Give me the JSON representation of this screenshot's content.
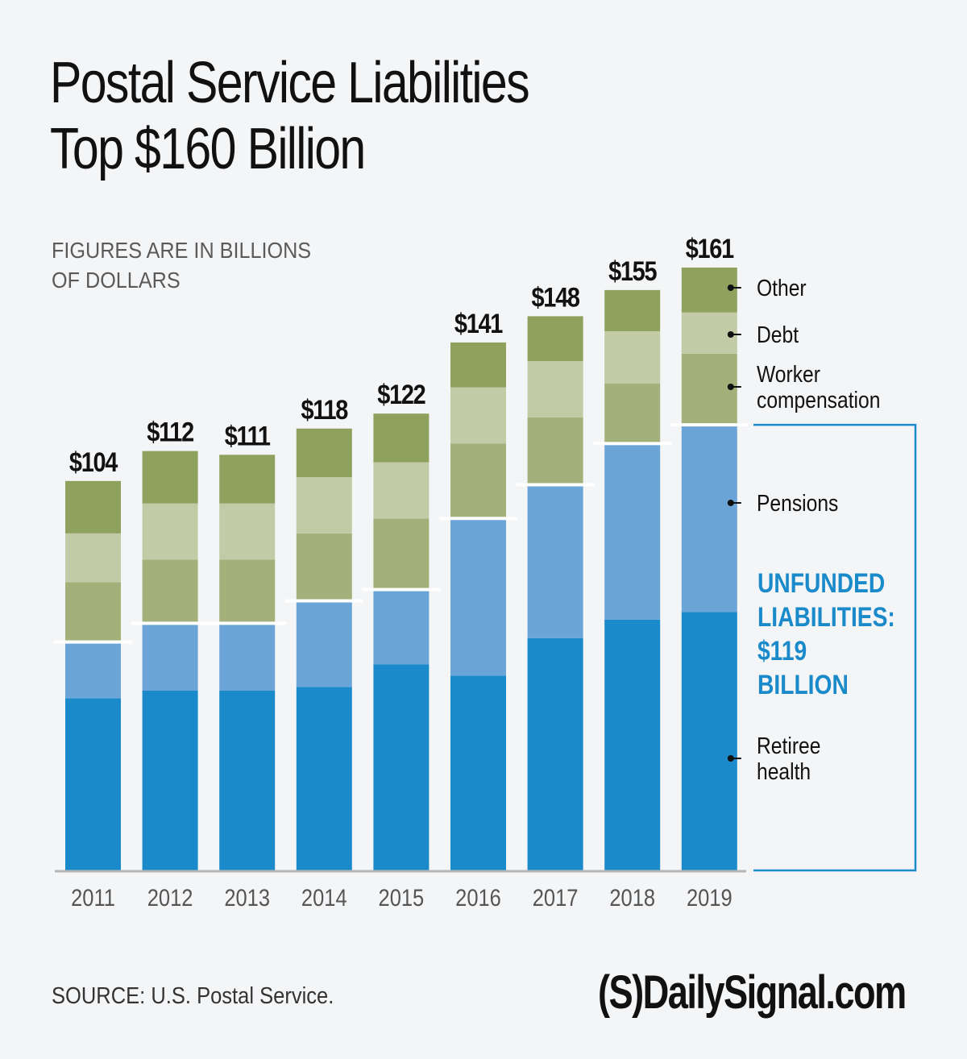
{
  "title": {
    "line1": "Postal Service Liabilities",
    "line2": "Top $160 Billion"
  },
  "subtitle": {
    "line1": "FIGURES ARE IN BILLIONS",
    "line2": "OF DOLLARS"
  },
  "source": "SOURCE: U.S. Postal Service.",
  "brand": "(S)DailySignal.com",
  "colors": {
    "retiree_health": "#1a8aca",
    "pensions": "#6ba5d8",
    "worker_compensation": "#a3b07a",
    "debt": "#c3caa6",
    "other": "#8ea25e",
    "separator": "#ffffff",
    "bracket": "#1a8aca",
    "axis": "#b5b5b5",
    "background": "#f4f5f7"
  },
  "chart_data": {
    "type": "bar",
    "stacked": true,
    "title": "Postal Service Liabilities Top $160 Billion",
    "subtitle": "FIGURES ARE IN BILLIONS OF DOLLARS",
    "xlabel": "",
    "ylabel": "Billions of dollars",
    "ylim": [
      0,
      161
    ],
    "grid": false,
    "categories": [
      "2011",
      "2012",
      "2013",
      "2014",
      "2015",
      "2016",
      "2017",
      "2018",
      "2019"
    ],
    "totals": [
      104,
      112,
      111,
      118,
      122,
      141,
      148,
      155,
      161
    ],
    "total_labels": [
      "$104",
      "$112",
      "$111",
      "$118",
      "$122",
      "$141",
      "$148",
      "$155",
      "$161"
    ],
    "series": [
      {
        "name": "Retiree health",
        "key": "retiree_health",
        "values": [
          46,
          48,
          48,
          49,
          55,
          52,
          62,
          67,
          69
        ]
      },
      {
        "name": "Pensions",
        "key": "pensions",
        "values": [
          15,
          18,
          18,
          23,
          20,
          42,
          41,
          47,
          50
        ]
      },
      {
        "name": "Worker compensation",
        "key": "worker_compensation",
        "values": [
          16,
          17,
          17,
          18,
          19,
          20,
          18,
          16,
          19
        ]
      },
      {
        "name": "Debt",
        "key": "debt",
        "values": [
          13,
          15,
          15,
          15,
          15,
          15,
          15,
          14,
          11
        ]
      },
      {
        "name": "Other",
        "key": "other",
        "values": [
          14,
          14,
          13,
          13,
          13,
          12,
          12,
          11,
          12
        ]
      }
    ],
    "legend": {
      "placement": "right",
      "labels": [
        {
          "key": "other",
          "lines": [
            "Other"
          ]
        },
        {
          "key": "debt",
          "lines": [
            "Debt"
          ]
        },
        {
          "key": "worker_compensation",
          "lines": [
            "Worker",
            "compensation"
          ]
        },
        {
          "key": "pensions",
          "lines": [
            "Pensions"
          ]
        },
        {
          "key": "retiree_health",
          "lines": [
            "Retiree",
            "health"
          ]
        }
      ]
    },
    "annotation": {
      "text_lines": [
        "UNFUNDED",
        "LIABILITIES:",
        "$119",
        "BILLION"
      ],
      "value": 119,
      "covers": [
        "retiree_health",
        "pensions"
      ]
    }
  }
}
